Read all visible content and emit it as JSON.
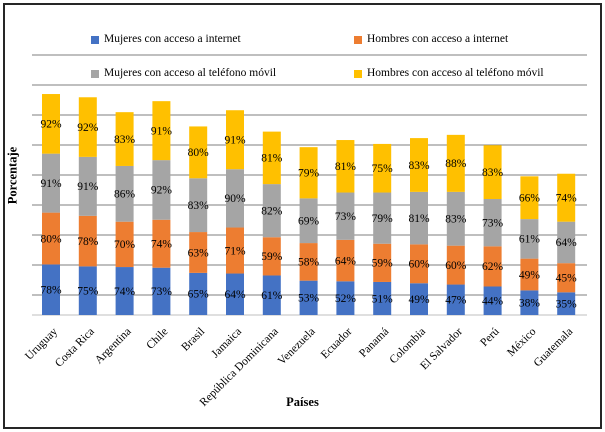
{
  "chart_data": {
    "type": "bar",
    "stacked": true,
    "title": "",
    "xlabel": "Países",
    "ylabel": "Porcentaje",
    "value_suffix": "%",
    "grid": true,
    "legend_position": "top",
    "ylim": [
      0,
      450
    ],
    "yticks_visible": false,
    "categories": [
      "Uruguay",
      "Costa Rica",
      "Argentina",
      "Chile",
      "Brasil",
      "Jamaica",
      "República Dominicana",
      "Venezuela",
      "Ecuador",
      "Panamá",
      "Colombia",
      "El Salvador",
      "Perú",
      "México",
      "Guatemala"
    ],
    "series": [
      {
        "name": "Mujeres con acceso a internet",
        "color": "#4472C4",
        "values": [
          78,
          75,
          74,
          73,
          65,
          64,
          61,
          53,
          52,
          51,
          49,
          47,
          44,
          38,
          35
        ]
      },
      {
        "name": "Hombres con acceso a internet",
        "color": "#ED7D31",
        "values": [
          80,
          78,
          70,
          74,
          63,
          71,
          59,
          58,
          64,
          59,
          60,
          60,
          62,
          49,
          45
        ]
      },
      {
        "name": "Mujeres con acceso al teléfono móvil",
        "color": "#A5A5A5",
        "values": [
          91,
          91,
          86,
          92,
          83,
          90,
          82,
          69,
          73,
          79,
          81,
          83,
          73,
          61,
          64
        ]
      },
      {
        "name": "Hombres con acceso al teléfono móvil",
        "color": "#FFC000",
        "values": [
          92,
          92,
          83,
          91,
          80,
          91,
          81,
          79,
          81,
          75,
          83,
          88,
          83,
          66,
          74
        ]
      }
    ]
  },
  "colors": {
    "gridline": "#7F7F7F",
    "axis_line": "#BFBFBF",
    "data_label": "#000000",
    "border": "#262626"
  }
}
